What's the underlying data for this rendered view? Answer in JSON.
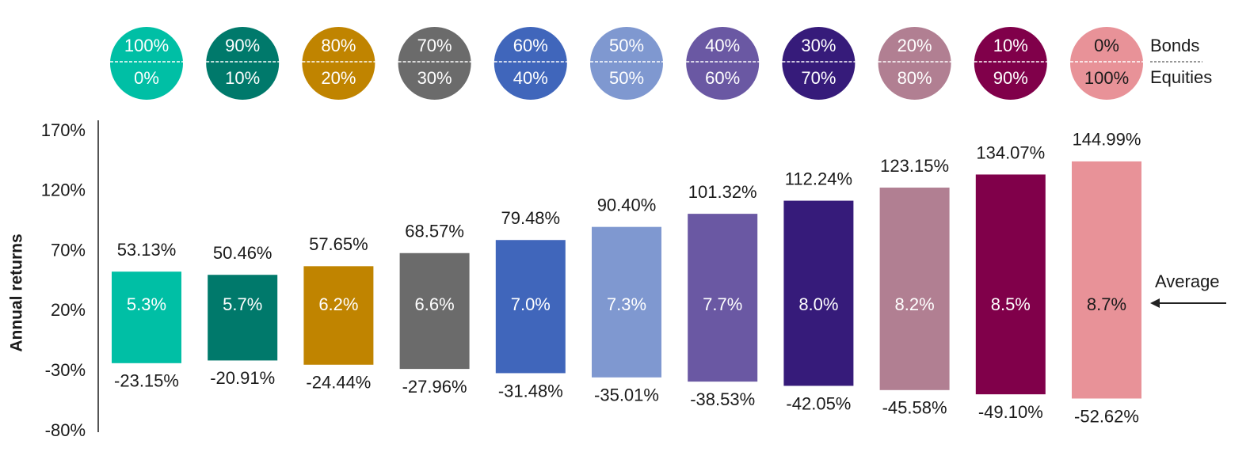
{
  "chart_data": {
    "type": "range-bar",
    "ylabel": "Annual returns",
    "bonds_label": "Bonds",
    "equities_label": "Equities",
    "bonds": [
      "100%",
      "90%",
      "80%",
      "70%",
      "60%",
      "50%",
      "40%",
      "30%",
      "20%",
      "10%",
      "0%"
    ],
    "equities": [
      "0%",
      "10%",
      "20%",
      "30%",
      "40%",
      "50%",
      "60%",
      "70%",
      "80%",
      "90%",
      "100%"
    ],
    "colors": [
      "#00bfa5",
      "#00796b",
      "#c08400",
      "#6b6b6b",
      "#4066bb",
      "#7f98d0",
      "#6a58a3",
      "#361b7a",
      "#b17f92",
      "#80004a",
      "#e89298"
    ],
    "max": {
      "values": [
        53.13,
        50.46,
        57.65,
        68.57,
        79.48,
        90.4,
        101.32,
        112.24,
        123.15,
        134.07,
        144.99
      ],
      "value_labels": [
        "53.13%",
        "50.46%",
        "57.65%",
        "68.57%",
        "79.48%",
        "90.40%",
        "101.32%",
        "112.24%",
        "123.15%",
        "134.07%",
        "144.99%"
      ]
    },
    "min": {
      "values": [
        -23.15,
        -20.91,
        -24.44,
        -27.96,
        -31.48,
        -35.01,
        -38.53,
        -42.05,
        -45.58,
        -49.1,
        -52.62
      ],
      "value_labels": [
        "-23.15%",
        "-20.91%",
        "-24.44%",
        "-27.96%",
        "-31.48%",
        "-35.01%",
        "-38.53%",
        "-42.05%",
        "-45.58%",
        "-49.10%",
        "-52.62%"
      ]
    },
    "average": {
      "label": "Average",
      "values": [
        5.3,
        5.7,
        6.2,
        6.6,
        7.0,
        7.3,
        7.7,
        8.0,
        8.2,
        8.5,
        8.7
      ],
      "value_labels": [
        "5.3%",
        "5.7%",
        "6.2%",
        "6.6%",
        "7.0%",
        "7.3%",
        "7.7%",
        "8.0%",
        "8.2%",
        "8.5%",
        "8.7%"
      ]
    },
    "ylim": [
      -80,
      170
    ],
    "yticks": [
      {
        "value": -80,
        "label": "-80%"
      },
      {
        "value": -30,
        "label": "-30%"
      },
      {
        "value": 20,
        "label": "20%"
      },
      {
        "value": 70,
        "label": "70%"
      },
      {
        "value": 120,
        "label": "120%"
      },
      {
        "value": 170,
        "label": "170%"
      }
    ]
  }
}
